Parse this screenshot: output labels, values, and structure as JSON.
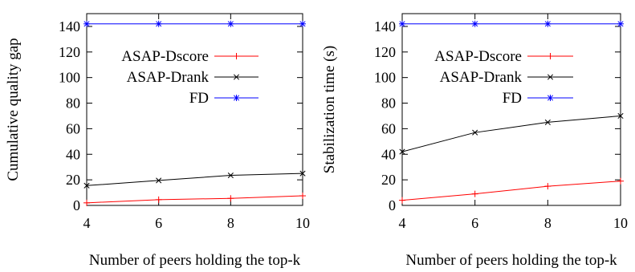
{
  "chart_data": [
    {
      "type": "line",
      "title": "",
      "xlabel": "Number of peers holding the top-k",
      "ylabel": "Cumulative quality gap",
      "xlim": [
        4,
        10
      ],
      "ylim": [
        0,
        150
      ],
      "xticks": [
        4,
        6,
        8,
        10
      ],
      "yticks": [
        0,
        20,
        40,
        60,
        80,
        100,
        120,
        140
      ],
      "grid": false,
      "legend": "center-right",
      "x": [
        4,
        6,
        8,
        10
      ],
      "series": [
        {
          "name": "ASAP-Dscore",
          "color": "#ff0000",
          "marker": "plus",
          "values": [
            2,
            4.5,
            5.5,
            7.5
          ]
        },
        {
          "name": "ASAP-Drank",
          "color": "#000000",
          "marker": "x",
          "values": [
            15.5,
            19.5,
            23.5,
            25
          ]
        },
        {
          "name": "FD",
          "color": "#0000ff",
          "marker": "star",
          "values": [
            142,
            142,
            142,
            142
          ]
        }
      ]
    },
    {
      "type": "line",
      "title": "",
      "xlabel": "Number of peers holding the top-k",
      "ylabel": "Stabilization time (s)",
      "xlim": [
        4,
        10
      ],
      "ylim": [
        0,
        150
      ],
      "xticks": [
        4,
        6,
        8,
        10
      ],
      "yticks": [
        0,
        20,
        40,
        60,
        80,
        100,
        120,
        140
      ],
      "grid": false,
      "legend": "center-right",
      "x": [
        4,
        6,
        8,
        10
      ],
      "series": [
        {
          "name": "ASAP-Dscore",
          "color": "#ff0000",
          "marker": "plus",
          "values": [
            4,
            9,
            15,
            19
          ]
        },
        {
          "name": "ASAP-Drank",
          "color": "#000000",
          "marker": "x",
          "values": [
            42,
            57,
            65,
            70
          ]
        },
        {
          "name": "FD",
          "color": "#0000ff",
          "marker": "star",
          "values": [
            142,
            142,
            142,
            142
          ]
        }
      ]
    }
  ]
}
